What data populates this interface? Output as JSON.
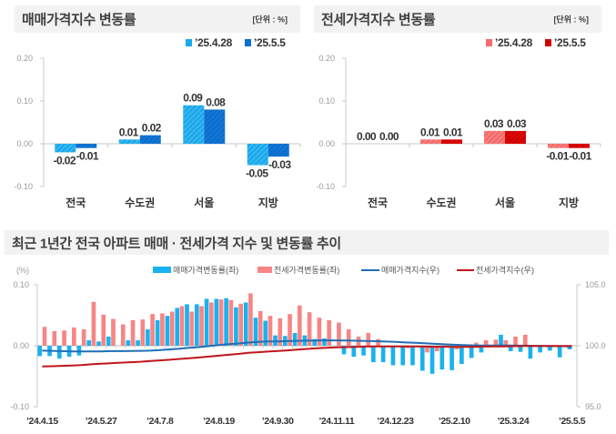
{
  "chart_data": [
    {
      "type": "bar",
      "title": "매매가격지수 변동률",
      "unit_label": "[단위 : %]",
      "categories": [
        "전국",
        "수도권",
        "서울",
        "지방"
      ],
      "series": [
        {
          "name": "’25.4.28",
          "color": "#1aa9ec",
          "values": [
            -0.02,
            0.01,
            0.09,
            -0.05
          ],
          "value_labels": [
            "-0.02",
            "0.01",
            "0.09",
            "-0.05"
          ]
        },
        {
          "name": "’25.5.5",
          "color": "#0a6fcf",
          "values": [
            -0.01,
            0.02,
            0.08,
            -0.03
          ],
          "value_labels": [
            "-0.01",
            "0.02",
            "0.08",
            "-0.03"
          ]
        }
      ],
      "yticks": [
        0.2,
        0.1,
        0.0,
        -0.1
      ],
      "ytick_labels": [
        "0.20",
        "0.10",
        "0.00",
        "-0.10"
      ],
      "ylim": [
        -0.1,
        0.2
      ],
      "xlabel": "",
      "ylabel": "",
      "legend": "top-right",
      "grid": false
    },
    {
      "type": "bar",
      "title": "전세가격지수 변동률",
      "unit_label": "[단위 : %]",
      "categories": [
        "전국",
        "수도권",
        "서울",
        "지방"
      ],
      "series": [
        {
          "name": "’25.4.28",
          "color": "#f46b6b",
          "values": [
            0.0,
            0.01,
            0.03,
            -0.01
          ],
          "value_labels": [
            "0.00",
            "0.01",
            "0.03",
            "-0.01"
          ]
        },
        {
          "name": "’25.5.5",
          "color": "#d40000",
          "values": [
            0.0,
            0.01,
            0.03,
            -0.01
          ],
          "value_labels": [
            "0.00",
            "0.01",
            "0.03",
            "-0.01"
          ]
        }
      ],
      "yticks": [
        0.2,
        0.1,
        0.0,
        -0.1
      ],
      "ytick_labels": [
        "0.20",
        "0.10",
        "0.00",
        "-0.10"
      ],
      "ylim": [
        -0.1,
        0.2
      ],
      "xlabel": "",
      "ylabel": "",
      "legend": "top-right",
      "grid": false
    },
    {
      "type": "bar+line",
      "title": "최근 1년간 전국 아파트 매매 · 전세가격 지수 및 변동률 추이",
      "ylabel_left": "(%)",
      "yticks_left": [
        0.1,
        0.0,
        -0.1
      ],
      "ytick_labels_left": [
        "0.10",
        "0.00",
        "-0.10"
      ],
      "ylim_left": [
        -0.1,
        0.1
      ],
      "yticks_right": [
        105.0,
        100.0,
        95.0
      ],
      "ytick_labels_right": [
        "105.0",
        "100.0",
        "95.0"
      ],
      "ylim_right": [
        95.0,
        105.0
      ],
      "n_points": 55,
      "x_tick_labels": [
        {
          "index": 0,
          "label": "’24.4.15"
        },
        {
          "index": 6,
          "label": "’24.5.27"
        },
        {
          "index": 12,
          "label": "’24.7.8"
        },
        {
          "index": 18,
          "label": "’24.8.19"
        },
        {
          "index": 24,
          "label": "’24.9.30"
        },
        {
          "index": 30,
          "label": "’24.11.11"
        },
        {
          "index": 36,
          "label": "’24.12.23"
        },
        {
          "index": 42,
          "label": "’25.2.10"
        },
        {
          "index": 48,
          "label": "’25.3.24"
        },
        {
          "index": 54,
          "label": "’25.5.5"
        }
      ],
      "legend": "top",
      "grid": false,
      "series": [
        {
          "name": "매매가격변동률(좌)",
          "type": "bar",
          "axis": "left",
          "color": "#19b2ef",
          "values": [
            -0.017,
            -0.017,
            -0.021,
            -0.018,
            -0.016,
            0.009,
            0.007,
            0.015,
            0.0,
            0.009,
            0.009,
            0.027,
            0.042,
            0.049,
            0.062,
            0.068,
            0.068,
            0.077,
            0.077,
            0.078,
            0.063,
            0.071,
            0.046,
            0.041,
            0.017,
            0.016,
            0.021,
            0.017,
            0.011,
            0.012,
            0.0,
            -0.014,
            -0.018,
            -0.016,
            -0.027,
            -0.027,
            -0.032,
            -0.032,
            -0.032,
            -0.041,
            -0.046,
            -0.039,
            -0.04,
            -0.03,
            -0.02,
            -0.011,
            0.0,
            0.018,
            -0.009,
            -0.01,
            -0.021,
            -0.011,
            -0.008,
            -0.019,
            -0.006
          ]
        },
        {
          "name": "전세가격변동률(좌)",
          "type": "bar",
          "axis": "left",
          "color": "#f78585",
          "values": [
            0.031,
            0.024,
            0.025,
            0.03,
            0.027,
            0.072,
            0.051,
            0.044,
            0.035,
            0.042,
            0.043,
            0.052,
            0.053,
            0.056,
            0.065,
            0.056,
            0.065,
            0.071,
            0.076,
            0.075,
            0.069,
            0.086,
            0.057,
            0.049,
            0.045,
            0.052,
            0.066,
            0.055,
            0.046,
            0.042,
            0.038,
            0.027,
            0.015,
            0.021,
            0.011,
            0.0,
            0.0,
            -0.004,
            0.0,
            -0.011,
            -0.009,
            0.0,
            -0.006,
            0.0,
            0.005,
            0.009,
            0.01,
            0.009,
            0.015,
            0.018,
            0.0,
            0.0,
            0.0,
            0.0,
            0.0
          ]
        },
        {
          "name": "매매가격지수(우)",
          "type": "line",
          "axis": "right",
          "color": "#1f6fb6",
          "values": [
            99.6,
            99.58,
            99.56,
            99.54,
            99.53,
            99.54,
            99.54,
            99.56,
            99.56,
            99.57,
            99.58,
            99.6,
            99.65,
            99.7,
            99.76,
            99.83,
            99.89,
            99.97,
            100.05,
            100.13,
            100.19,
            100.26,
            100.31,
            100.35,
            100.36,
            100.38,
            100.4,
            100.42,
            100.43,
            100.44,
            100.44,
            100.43,
            100.41,
            100.39,
            100.37,
            100.34,
            100.31,
            100.27,
            100.24,
            100.2,
            100.16,
            100.12,
            100.08,
            100.05,
            100.03,
            100.02,
            100.02,
            100.03,
            100.02,
            100.01,
            99.99,
            99.98,
            99.97,
            99.96,
            99.95
          ]
        },
        {
          "name": "전세가격지수(우)",
          "type": "line",
          "axis": "right",
          "color": "#c0161c",
          "values": [
            98.3,
            98.32,
            98.35,
            98.38,
            98.41,
            98.48,
            98.53,
            98.57,
            98.61,
            98.65,
            98.69,
            98.75,
            98.8,
            98.85,
            98.92,
            98.98,
            99.04,
            99.11,
            99.19,
            99.26,
            99.33,
            99.42,
            99.47,
            99.52,
            99.57,
            99.62,
            99.69,
            99.74,
            99.79,
            99.83,
            99.87,
            99.89,
            99.91,
            99.93,
            99.94,
            99.94,
            99.94,
            99.94,
            99.94,
            99.93,
            99.92,
            99.92,
            99.91,
            99.91,
            99.92,
            99.93,
            99.94,
            99.94,
            99.96,
            99.98,
            99.98,
            99.98,
            99.98,
            99.98,
            99.98
          ]
        }
      ]
    }
  ]
}
